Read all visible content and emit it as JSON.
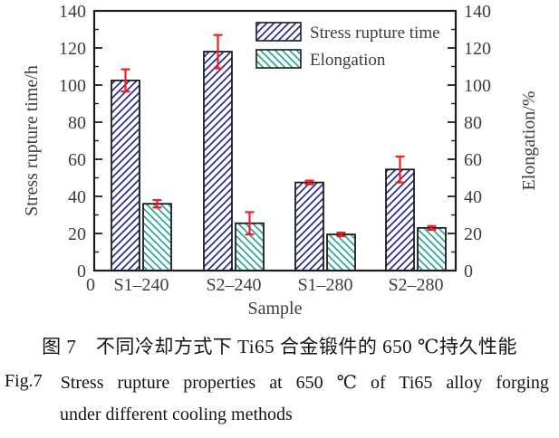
{
  "style": {
    "background": "#ffffff",
    "axis_color": "#1c1c1c",
    "tick_text_color": "#3c3c3c",
    "caption_color": "#141414",
    "stress_hatch_color": "#2e2e8f",
    "elongation_hatch_color": "#2aa69a",
    "error_bar_color": "#ee2024"
  },
  "chart_data": {
    "type": "bar",
    "categories": [
      "S1–240",
      "S2–240",
      "S1–280",
      "S2–280"
    ],
    "series": [
      {
        "name": "Stress rupture time",
        "axis": "left",
        "hatch": "/",
        "color": "#2e2e8f",
        "values": [
          102.5,
          118,
          47.5,
          54.5
        ],
        "errors": [
          6,
          9,
          1,
          7
        ]
      },
      {
        "name": "Elongation",
        "axis": "right",
        "hatch": "\\",
        "color": "#2aa69a",
        "values": [
          36,
          25.5,
          19.5,
          23
        ],
        "errors": [
          2,
          6,
          1,
          1
        ]
      }
    ],
    "xlabel": "Sample",
    "ylabel_left": "Stress rupture time/h",
    "ylabel_right": "Elongation/%",
    "ylim": [
      0,
      140
    ],
    "ytick_step": 20,
    "ytick_minor_step": 10,
    "x_origin_label": "0",
    "grid": false,
    "legend_position": "inside-top-center",
    "error_bar_color": "#ee2024"
  },
  "caption": {
    "line1_zh": "图 7　不同冷却方式下 Ti65 合金锻件的 650 ℃持久性能",
    "line2_prefix": "Fig.7",
    "line2_text": "Stress rupture properties at 650 ℃ of Ti65 alloy forging",
    "line3_text": "under different cooling methods"
  }
}
